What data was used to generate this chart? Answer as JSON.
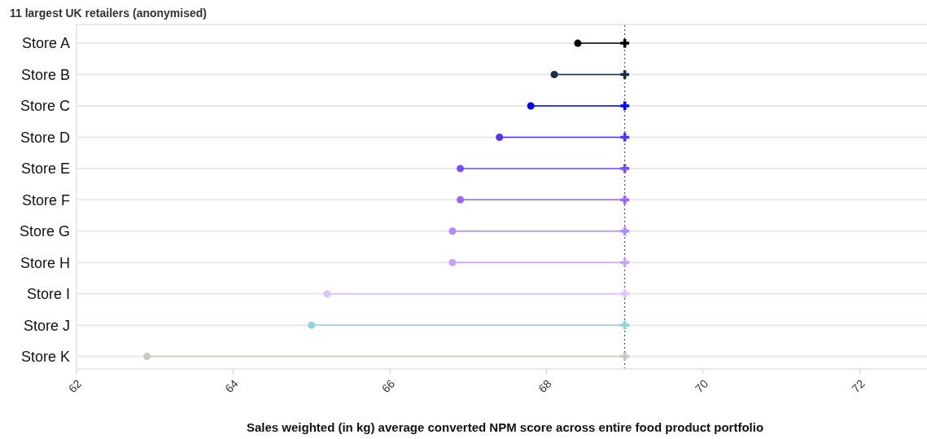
{
  "chart_data": {
    "type": "lollipop",
    "orientation": "horizontal",
    "subtitle": "11 largest UK retailers (anonymised)",
    "xlabel": "Sales weighted (in kg) average converted NPM score across entire food product portfolio",
    "categories": [
      "Store A",
      "Store B",
      "Store C",
      "Store D",
      "Store E",
      "Store F",
      "Store G",
      "Store H",
      "Store I",
      "Store J",
      "Store K"
    ],
    "series": [
      {
        "type": "scatter",
        "marker": "circle",
        "values": [
          68.4,
          68.1,
          67.8,
          67.4,
          66.9,
          66.9,
          66.8,
          66.8,
          65.2,
          65.0,
          62.9
        ],
        "colors": [
          "#000000",
          "#1a2e4a",
          "#0000ff",
          "#5533ff",
          "#7a4dff",
          "#9966ff",
          "#b08aff",
          "#c9a3ff",
          "#dcc4ff",
          "#90d4dd",
          "#cdc6bb"
        ]
      },
      {
        "type": "scatter",
        "marker": "cross",
        "values": [
          69,
          69,
          69,
          69,
          69,
          69,
          69,
          69,
          69,
          69,
          69
        ],
        "colors": [
          "#000000",
          "#1a2e4a",
          "#0000ff",
          "#5533ff",
          "#7a4dff",
          "#9966ff",
          "#b08aff",
          "#c9a3ff",
          "#dcc4ff",
          "#90d4dd",
          "#cdc6bb"
        ]
      }
    ],
    "ref_lines": [
      {
        "axis": "x",
        "value": 69,
        "label": null,
        "color": "#333333",
        "line_style": "dotted"
      }
    ],
    "xlim": [
      62,
      72.9
    ],
    "xticks": [
      62,
      64,
      66,
      68,
      70,
      72
    ],
    "grid": "y"
  }
}
